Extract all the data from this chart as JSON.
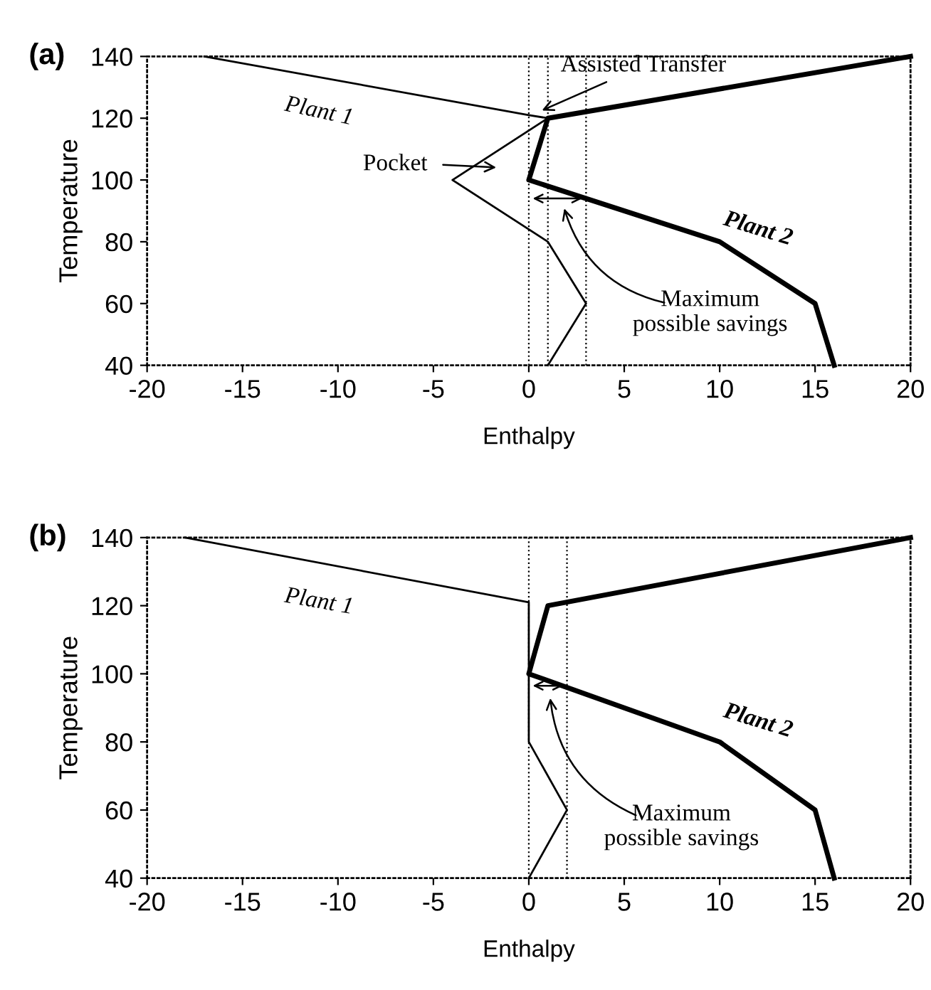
{
  "chart_data": [
    {
      "type": "line",
      "title": "(a)",
      "xlabel": "Enthalpy",
      "ylabel": "Temperature",
      "series": [
        {
          "name": "Plant 1",
          "color": "#000000",
          "x": [
            -17,
            0,
            1,
            -4,
            1,
            3,
            1
          ],
          "values": [
            140,
            121,
            120,
            100,
            80,
            60,
            40
          ]
        },
        {
          "name": "Plant 2",
          "color": "#000000",
          "x": [
            20,
            1,
            0,
            10,
            15,
            16
          ],
          "values": [
            140,
            120,
            100,
            80,
            60,
            40
          ]
        }
      ],
      "xlim": [
        -20,
        20
      ],
      "ylim": [
        40,
        140
      ],
      "xticks": [
        -20,
        -15,
        -10,
        -5,
        0,
        5,
        10,
        15,
        20
      ],
      "yticks": [
        40,
        60,
        80,
        100,
        120,
        140
      ],
      "ref_lines": [
        {
          "axis": "x",
          "value": 0,
          "line_style": "dotted"
        },
        {
          "axis": "x",
          "value": 1,
          "line_style": "dotted"
        },
        {
          "axis": "x",
          "value": 3,
          "line_style": "dotted"
        }
      ],
      "annotations": [
        {
          "text": "Assisted Transfer",
          "x": 0.5,
          "y": 122
        },
        "Pocket",
        "Maximum\npossible savings"
      ],
      "grid": false,
      "legend": false,
      "marker": "none",
      "line_style": "solid"
    },
    {
      "type": "line",
      "title": "(b)",
      "xlabel": "Enthalpy",
      "ylabel": "Temperature",
      "series": [
        {
          "name": "Plant 1",
          "color": "#000000",
          "x": [
            -18,
            0,
            0,
            0,
            2,
            0
          ],
          "values": [
            140,
            121,
            100,
            80,
            60,
            40
          ]
        },
        {
          "name": "Plant 2",
          "color": "#000000",
          "x": [
            20,
            1,
            0,
            10,
            15,
            16
          ],
          "values": [
            140,
            120,
            100,
            80,
            60,
            40
          ]
        }
      ],
      "xlim": [
        -20,
        20
      ],
      "ylim": [
        40,
        140
      ],
      "xticks": [
        -20,
        -15,
        -10,
        -5,
        0,
        5,
        10,
        15,
        20
      ],
      "yticks": [
        40,
        60,
        80,
        100,
        120,
        140
      ],
      "ref_lines": [
        {
          "axis": "x",
          "value": 0,
          "line_style": "dotted"
        },
        {
          "axis": "x",
          "value": 2,
          "line_style": "dotted"
        }
      ],
      "annotations": [
        "Maximum\npossible savings"
      ],
      "grid": false,
      "legend": false,
      "marker": "none",
      "line_style": "solid"
    }
  ]
}
